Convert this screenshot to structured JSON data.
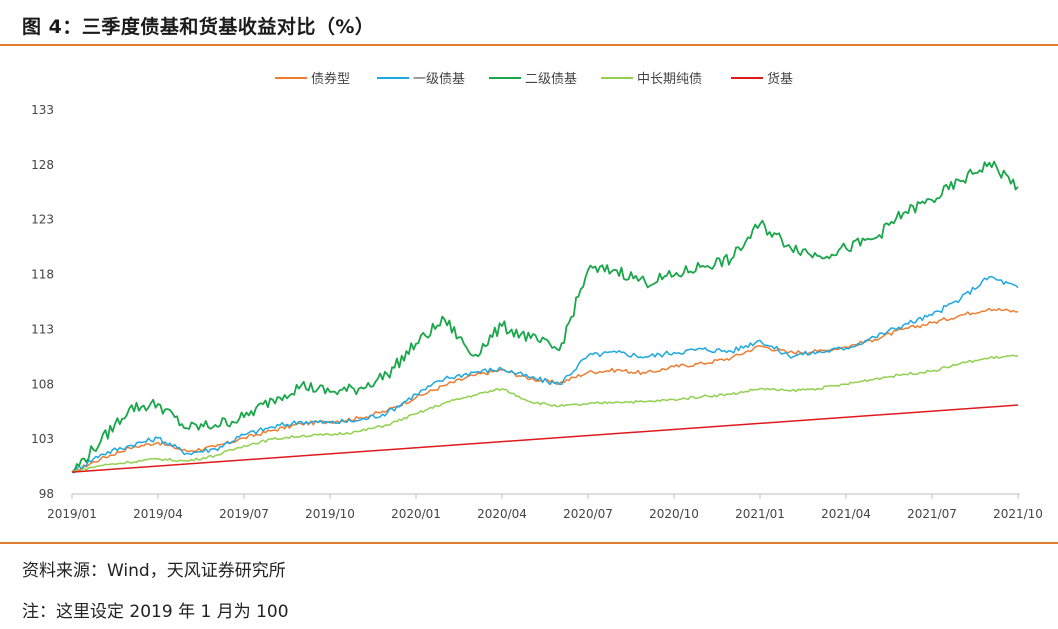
{
  "header": {
    "title": "图 4：三季度债基和货基收益对比（%）"
  },
  "footer": {
    "source": "资料来源：Wind，天风证券研究所",
    "note": "注：这里设定 2019 年 1 月为 100"
  },
  "colors": {
    "accent_rule": "#e07c2c"
  },
  "chart_data": {
    "type": "line",
    "title": "",
    "xlabel": "",
    "ylabel": "",
    "ylim": [
      98,
      133
    ],
    "yticks": [
      98,
      103,
      108,
      113,
      118,
      123,
      128,
      133
    ],
    "xticks": [
      "2019/01",
      "2019/04",
      "2019/07",
      "2019/10",
      "2020/01",
      "2020/04",
      "2020/07",
      "2020/10",
      "2021/01",
      "2021/04",
      "2021/07",
      "2021/10"
    ],
    "grid": false,
    "legend_position": "top",
    "series": [
      {
        "name": "债券型",
        "color": "#ed7d31",
        "x": [
          "2019/01",
          "2019/02",
          "2019/03",
          "2019/04",
          "2019/05",
          "2019/06",
          "2019/07",
          "2019/08",
          "2019/09",
          "2019/10",
          "2019/11",
          "2019/12",
          "2020/01",
          "2020/02",
          "2020/03",
          "2020/04",
          "2020/05",
          "2020/06",
          "2020/07",
          "2020/08",
          "2020/09",
          "2020/10",
          "2020/11",
          "2020/12",
          "2021/01",
          "2021/02",
          "2021/03",
          "2021/04",
          "2021/05",
          "2021/06",
          "2021/07",
          "2021/08",
          "2021/09",
          "2021/10"
        ],
        "values": [
          100.0,
          101.2,
          102.2,
          102.7,
          101.9,
          102.3,
          103.1,
          103.8,
          104.4,
          104.6,
          104.9,
          105.6,
          106.8,
          107.9,
          108.8,
          109.3,
          108.5,
          108.1,
          109.1,
          109.3,
          109.0,
          109.6,
          109.9,
          110.4,
          111.5,
          110.9,
          111.0,
          111.4,
          112.1,
          113.0,
          113.6,
          114.3,
          114.9,
          114.6
        ]
      },
      {
        "name": "一级债基",
        "color": "#1ea8e0",
        "x": [
          "2019/01",
          "2019/02",
          "2019/03",
          "2019/04",
          "2019/05",
          "2019/06",
          "2019/07",
          "2019/08",
          "2019/09",
          "2019/10",
          "2019/11",
          "2019/12",
          "2020/01",
          "2020/02",
          "2020/03",
          "2020/04",
          "2020/05",
          "2020/06",
          "2020/07",
          "2020/08",
          "2020/09",
          "2020/10",
          "2020/11",
          "2020/12",
          "2021/01",
          "2021/02",
          "2021/03",
          "2021/04",
          "2021/05",
          "2021/06",
          "2021/07",
          "2021/08",
          "2021/09",
          "2021/10"
        ],
        "values": [
          100.0,
          101.6,
          102.4,
          103.1,
          101.7,
          102.1,
          103.4,
          104.1,
          104.6,
          104.5,
          104.7,
          105.4,
          107.1,
          108.5,
          109.1,
          109.4,
          108.6,
          108.0,
          110.6,
          110.9,
          110.5,
          110.9,
          111.2,
          111.0,
          112.0,
          110.6,
          110.9,
          111.3,
          112.3,
          113.4,
          114.3,
          115.8,
          117.8,
          116.8
        ]
      },
      {
        "name": "二级债基",
        "color": "#1aa64a",
        "x": [
          "2019/01",
          "2019/02",
          "2019/03",
          "2019/04",
          "2019/05",
          "2019/06",
          "2019/07",
          "2019/08",
          "2019/09",
          "2019/10",
          "2019/11",
          "2019/12",
          "2020/01",
          "2020/02",
          "2020/03",
          "2020/04",
          "2020/05",
          "2020/06",
          "2020/07",
          "2020/08",
          "2020/09",
          "2020/10",
          "2020/11",
          "2020/12",
          "2021/01",
          "2021/02",
          "2021/03",
          "2021/04",
          "2021/05",
          "2021/06",
          "2021/07",
          "2021/08",
          "2021/09",
          "2021/10"
        ],
        "values": [
          100.0,
          102.8,
          105.8,
          106.2,
          104.0,
          104.3,
          105.0,
          106.6,
          107.9,
          107.3,
          107.6,
          108.9,
          111.7,
          113.9,
          110.6,
          113.3,
          112.2,
          111.1,
          118.4,
          118.4,
          117.3,
          117.9,
          118.8,
          119.4,
          122.6,
          120.7,
          119.7,
          120.4,
          121.3,
          123.6,
          124.8,
          126.5,
          128.2,
          126.0
        ]
      },
      {
        "name": "中长期纯债",
        "color": "#92d050",
        "x": [
          "2019/01",
          "2019/02",
          "2019/03",
          "2019/04",
          "2019/05",
          "2019/06",
          "2019/07",
          "2019/08",
          "2019/09",
          "2019/10",
          "2019/11",
          "2019/12",
          "2020/01",
          "2020/02",
          "2020/03",
          "2020/04",
          "2020/05",
          "2020/06",
          "2020/07",
          "2020/08",
          "2020/09",
          "2020/10",
          "2020/11",
          "2020/12",
          "2021/01",
          "2021/02",
          "2021/03",
          "2021/04",
          "2021/05",
          "2021/06",
          "2021/07",
          "2021/08",
          "2021/09",
          "2021/10"
        ],
        "values": [
          100.0,
          100.6,
          100.9,
          101.2,
          101.0,
          101.5,
          102.4,
          103.0,
          103.3,
          103.4,
          103.7,
          104.3,
          105.3,
          106.3,
          107.0,
          107.6,
          106.4,
          106.0,
          106.2,
          106.4,
          106.4,
          106.6,
          106.9,
          107.1,
          107.6,
          107.4,
          107.6,
          108.0,
          108.5,
          108.9,
          109.2,
          109.9,
          110.4,
          110.6
        ]
      },
      {
        "name": "货基",
        "color": "#e0191d",
        "x": [
          "2019/01",
          "2021/10"
        ],
        "values": [
          100.0,
          106.1
        ]
      }
    ]
  }
}
